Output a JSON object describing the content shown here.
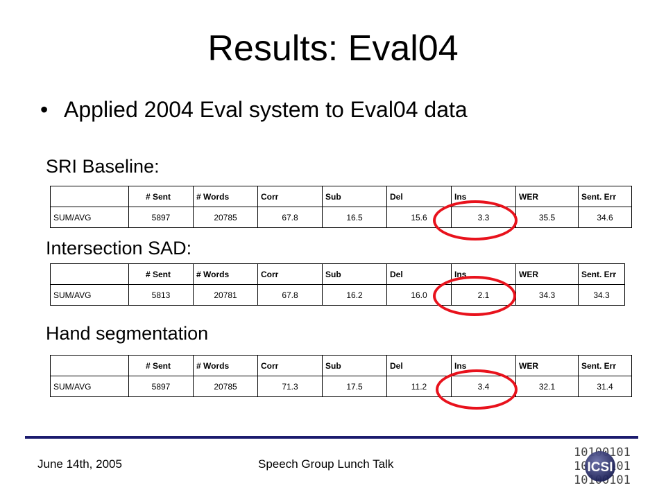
{
  "slide": {
    "title": "Results: Eval04",
    "bullet": "Applied 2004 Eval system to Eval04 data",
    "bullet_icon": "bullet-dot"
  },
  "tables": {
    "headers": [
      "",
      "# Sent",
      "# Words",
      "Corr",
      "Sub",
      "Del",
      "Ins",
      "WER",
      "Sent. Err"
    ],
    "baseline": {
      "label": "SRI Baseline:",
      "row": [
        "SUM/AVG",
        "5897",
        "20785",
        "67.8",
        "16.5",
        "15.6",
        "3.3",
        "35.5",
        "34.6"
      ]
    },
    "sad": {
      "label": "Intersection SAD:",
      "row": [
        "SUM/AVG",
        "5813",
        "20781",
        "67.8",
        "16.2",
        "16.0",
        "2.1",
        "34.3",
        "34.3"
      ]
    },
    "hand": {
      "label": "Hand segmentation",
      "row": [
        "SUM/AVG",
        "5897",
        "20785",
        "71.3",
        "17.5",
        "11.2",
        "3.4",
        "32.1",
        "31.4"
      ]
    }
  },
  "highlight": {
    "color": "#e8121c",
    "column": "Ins"
  },
  "footer": {
    "date": "June 14th, 2005",
    "talk": "Speech Group Lunch Talk",
    "rule_color": "#1b1b6e"
  },
  "logo": {
    "text": "ICSI",
    "binary": "10100101",
    "icon": "icsi-logo"
  }
}
